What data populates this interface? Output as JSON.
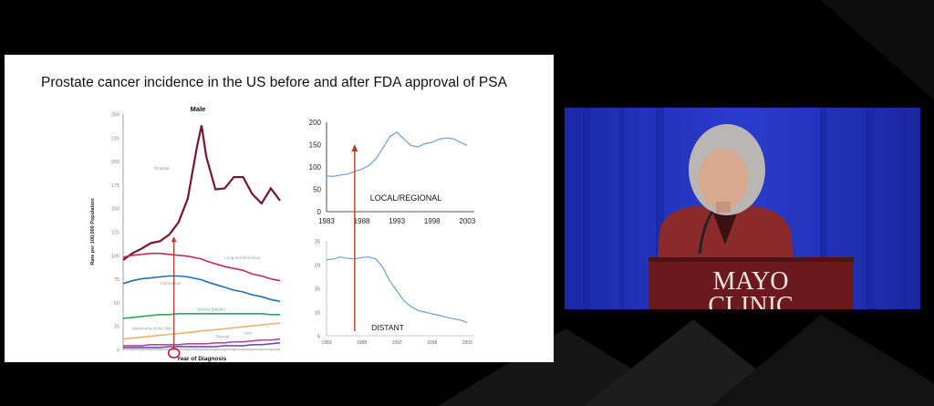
{
  "slide": {
    "title": "Prostate cancer incidence in the US before and after FDA approval of PSA"
  },
  "chart_data": [
    {
      "type": "line",
      "title": "Male",
      "xlabel": "Year of Diagnosis",
      "ylabel": "Rate per 100,000 Population",
      "ylim": [
        0,
        250
      ],
      "yticks": [
        "0",
        "25",
        "50",
        "75",
        "100",
        "125",
        "150",
        "175",
        "200",
        "225",
        "250"
      ],
      "x": [
        1975,
        1977,
        1979,
        1981,
        1983,
        1985,
        1987,
        1989,
        1991,
        1992,
        1993,
        1995,
        1997,
        1999,
        2001,
        2003,
        2005,
        2007,
        2009
      ],
      "series": [
        {
          "name": "Prostate",
          "color": "#7a1433",
          "values": [
            95,
            102,
            107,
            113,
            115,
            122,
            135,
            160,
            215,
            238,
            205,
            170,
            171,
            183,
            183,
            165,
            155,
            171,
            158
          ]
        },
        {
          "name": "Lung and Bronchus",
          "color": "#c4285c",
          "values": [
            98,
            100,
            101,
            102,
            102,
            101,
            100,
            99,
            97,
            96,
            94,
            91,
            88,
            86,
            84,
            80,
            78,
            75,
            73
          ]
        },
        {
          "name": "Colorectum",
          "color": "#1f6fb5",
          "values": [
            70,
            73,
            75,
            76,
            77,
            78,
            78,
            77,
            75,
            74,
            72,
            69,
            66,
            63,
            61,
            58,
            56,
            53,
            51
          ]
        },
        {
          "name": "Urinary Bladder",
          "color": "#2aaa5a",
          "values": [
            33,
            34,
            35,
            36,
            37,
            37,
            38,
            38,
            38,
            38,
            38,
            38,
            38,
            38,
            38,
            38,
            38,
            37,
            37
          ]
        },
        {
          "name": "Melanoma of the Skin",
          "color": "#f0b070",
          "values": [
            11,
            12,
            13,
            14,
            15,
            16,
            17,
            18,
            19,
            20,
            20,
            21,
            22,
            23,
            24,
            25,
            26,
            27,
            28
          ]
        },
        {
          "name": "Liver",
          "color": "#b04aa0",
          "values": [
            4,
            4,
            4,
            5,
            5,
            5,
            5,
            6,
            6,
            6,
            6,
            7,
            7,
            8,
            8,
            9,
            10,
            10,
            11
          ]
        },
        {
          "name": "Thyroid",
          "color": "#6b50b0",
          "values": [
            2,
            2,
            2,
            2,
            2,
            3,
            3,
            3,
            3,
            3,
            3,
            3,
            4,
            4,
            4,
            5,
            5,
            6,
            7
          ]
        }
      ],
      "annotations": [
        "arrow at 1986 (FDA approval of PSA)",
        "circle around 1986 on x-axis"
      ]
    },
    {
      "type": "line",
      "title": "LOCAL/REGIONAL",
      "xlabel": "",
      "ylabel": "",
      "ylim": [
        0,
        200
      ],
      "yticks": [
        "0",
        "50",
        "100",
        "150",
        "200"
      ],
      "xticks": [
        "1983",
        "1988",
        "1993",
        "1998",
        "2003"
      ],
      "x": [
        1983,
        1984,
        1985,
        1986,
        1987,
        1988,
        1989,
        1990,
        1991,
        1992,
        1993,
        1994,
        1995,
        1996,
        1997,
        1998,
        1999,
        2000,
        2001,
        2002,
        2003
      ],
      "series": [
        {
          "name": "",
          "color": "#6a9fd4",
          "values": [
            80,
            79,
            82,
            84,
            90,
            95,
            103,
            118,
            142,
            168,
            178,
            162,
            148,
            145,
            152,
            155,
            162,
            165,
            163,
            155,
            148
          ]
        }
      ]
    },
    {
      "type": "line",
      "title": "DISTANT",
      "xlabel": "",
      "ylabel": "",
      "ylim": [
        5,
        25
      ],
      "yticks": [
        "5",
        "10",
        "15",
        "20",
        "25"
      ],
      "xticks": [
        "1983",
        "1988",
        "1993",
        "1998",
        "2003"
      ],
      "x": [
        1983,
        1984,
        1985,
        1986,
        1987,
        1988,
        1989,
        1990,
        1991,
        1992,
        1993,
        1994,
        1995,
        1996,
        1997,
        1998,
        1999,
        2000,
        2001,
        2002,
        2003
      ],
      "series": [
        {
          "name": "",
          "color": "#6a9fd4",
          "values": [
            21,
            21.2,
            21.6,
            21.3,
            21.2,
            21.5,
            21.6,
            21.2,
            19.4,
            16.5,
            14.5,
            12.3,
            11.2,
            10.3,
            10,
            9.6,
            9.3,
            8.9,
            8.6,
            8.3,
            7.8
          ]
        }
      ]
    }
  ],
  "video": {
    "podium_text_line1": "MAYO",
    "podium_text_line2": "CLINIC"
  },
  "colors": {
    "background": "#000000",
    "slide": "#ffffff",
    "video_backdrop": "#1f2fb7",
    "podium": "#6a1a1c",
    "annotation_arrow": "#c0392b"
  }
}
